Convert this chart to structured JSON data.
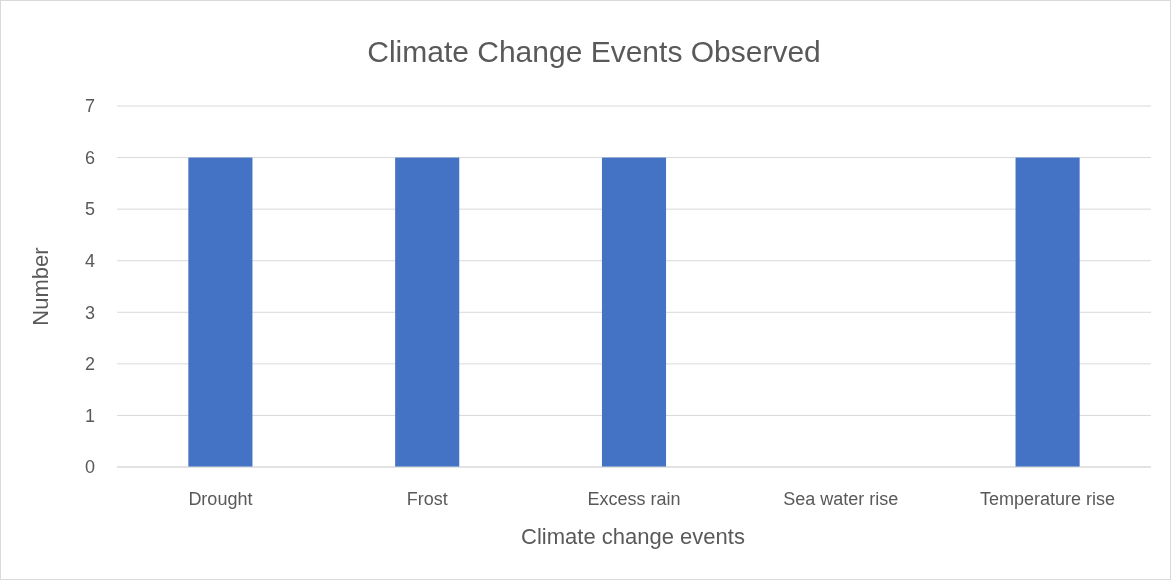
{
  "chart_data": {
    "type": "bar",
    "title": "Climate Change Events Observed",
    "xlabel": "Climate change events",
    "ylabel": "Number",
    "categories": [
      "Drought",
      "Frost",
      "Excess rain",
      "Sea water rise",
      "Temperature rise"
    ],
    "values": [
      6,
      6,
      6,
      0,
      6
    ],
    "color": "#4472c4",
    "ylim": [
      0,
      7
    ],
    "yticks": [
      0,
      1,
      2,
      3,
      4,
      5,
      6,
      7
    ],
    "grid": "y"
  }
}
